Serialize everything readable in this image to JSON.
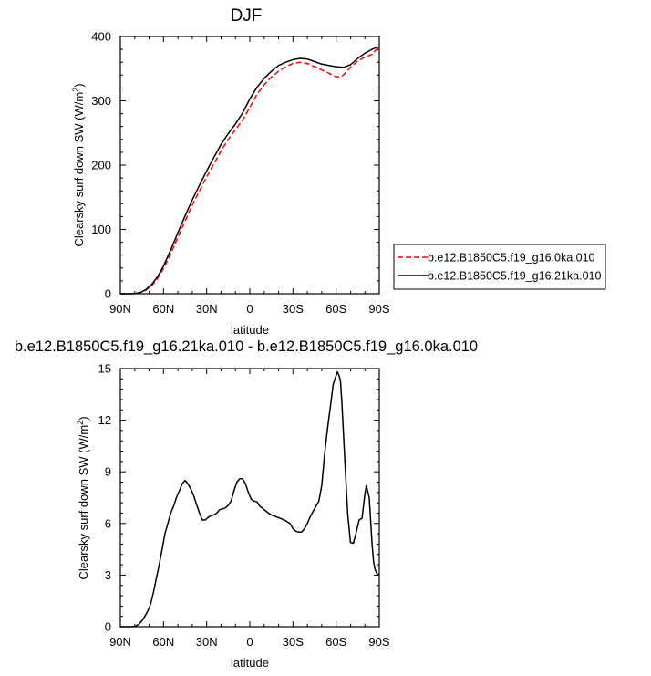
{
  "chart_data": [
    {
      "type": "line",
      "title": "DJF",
      "xlabel": "latitude",
      "ylabel": "Clearsky surf down SW (W/m",
      "ylabel_sup": "2",
      "ylabel_close": ")",
      "x_ticks": [
        "90N",
        "60N",
        "30N",
        "0",
        "30S",
        "60S",
        "90S"
      ],
      "x_tick_values": [
        90,
        60,
        30,
        0,
        -30,
        -60,
        -90
      ],
      "y_ticks": [
        "0",
        "100",
        "200",
        "300",
        "400"
      ],
      "y_tick_values": [
        0,
        100,
        200,
        300,
        400
      ],
      "xlim": [
        90,
        -90
      ],
      "ylim": [
        0,
        400
      ],
      "legend_position": "right",
      "series": [
        {
          "name": "b.e12.B1850C5.f19_g16.0ka.010",
          "color": "#ff0000",
          "dash": "dashed",
          "x": [
            90,
            84,
            80,
            76,
            72,
            68,
            64,
            60,
            55,
            50,
            45,
            40,
            35,
            30,
            25,
            20,
            15,
            10,
            5,
            0,
            -5,
            -10,
            -15,
            -20,
            -25,
            -30,
            -35,
            -40,
            -45,
            -50,
            -55,
            -58,
            -61,
            -64,
            -67,
            -70,
            -75,
            -80,
            -85,
            -88,
            -90
          ],
          "y": [
            0,
            0,
            0.3,
            2,
            6,
            13,
            24,
            39,
            62,
            88,
            113,
            138,
            160,
            182,
            202,
            222,
            240,
            255,
            270,
            290,
            310,
            325,
            337,
            346,
            353,
            358,
            360,
            358,
            353,
            348,
            343,
            339,
            337,
            338,
            345,
            352,
            362,
            368,
            372,
            380,
            383
          ]
        },
        {
          "name": "b.e12.B1850C5.f19_g16.21ka.010",
          "color": "#000000",
          "dash": "solid",
          "x": [
            90,
            84,
            80,
            76,
            72,
            68,
            64,
            60,
            55,
            50,
            45,
            40,
            35,
            30,
            25,
            20,
            15,
            10,
            5,
            0,
            -5,
            -10,
            -15,
            -20,
            -25,
            -30,
            -35,
            -40,
            -45,
            -50,
            -55,
            -60,
            -65,
            -70,
            -75,
            -80,
            -85,
            -88,
            -90
          ],
          "y": [
            0,
            0,
            0.3,
            2,
            7,
            15,
            27,
            43,
            68,
            95,
            121,
            146,
            169,
            191,
            212,
            232,
            249,
            264,
            281,
            303,
            321,
            335,
            346,
            355,
            360,
            364,
            366,
            365,
            361,
            357,
            355,
            353,
            352,
            356,
            366,
            374,
            380,
            383,
            384
          ]
        }
      ]
    },
    {
      "type": "line",
      "title": "b.e12.B1850C5.f19_g16.21ka.010 - b.e12.B1850C5.f19_g16.0ka.010",
      "xlabel": "latitude",
      "ylabel": "Clearsky surf down SW (W/m",
      "ylabel_sup": "2",
      "ylabel_close": ")",
      "x_ticks": [
        "90N",
        "60N",
        "30N",
        "0",
        "30S",
        "60S",
        "90S"
      ],
      "x_tick_values": [
        90,
        60,
        30,
        0,
        -30,
        -60,
        -90
      ],
      "y_ticks": [
        "0",
        "3",
        "6",
        "9",
        "12",
        "15"
      ],
      "y_tick_values": [
        0,
        3,
        6,
        9,
        12,
        15
      ],
      "xlim": [
        90,
        -90
      ],
      "ylim": [
        0,
        15
      ],
      "series": [
        {
          "color": "#000000",
          "x": [
            90,
            84,
            80,
            77,
            75,
            73,
            71,
            69,
            67,
            65,
            63,
            61,
            59,
            57,
            55,
            53,
            51,
            49,
            47,
            45,
            43,
            41,
            39,
            37,
            35,
            33,
            31,
            29,
            27,
            25,
            23,
            21,
            19,
            17,
            15,
            13,
            11,
            9,
            7,
            5,
            3,
            1,
            -1,
            -3,
            -5,
            -7,
            -10,
            -13,
            -15,
            -18,
            -21,
            -24,
            -26,
            -28,
            -30,
            -32,
            -34,
            -36,
            -38,
            -40,
            -42,
            -44,
            -46,
            -48,
            -50,
            -52,
            -54,
            -56,
            -58,
            -60,
            -61,
            -62,
            -63,
            -64,
            -66,
            -68,
            -70,
            -72,
            -74,
            -76,
            -78,
            -80,
            -81,
            -83,
            -85,
            -86,
            -87,
            -88,
            -89,
            -90
          ],
          "y": [
            0,
            0,
            0.01,
            0.15,
            0.35,
            0.6,
            0.9,
            1.3,
            2.0,
            2.8,
            3.6,
            4.5,
            5.4,
            6.0,
            6.6,
            7.0,
            7.5,
            7.9,
            8.3,
            8.5,
            8.3,
            8.0,
            7.6,
            7.1,
            6.6,
            6.2,
            6.2,
            6.35,
            6.45,
            6.5,
            6.6,
            6.8,
            6.85,
            6.9,
            7.05,
            7.3,
            7.9,
            8.4,
            8.6,
            8.6,
            8.3,
            7.8,
            7.4,
            7.3,
            7.25,
            7.0,
            6.8,
            6.6,
            6.5,
            6.4,
            6.3,
            6.2,
            6.1,
            6.0,
            5.7,
            5.55,
            5.5,
            5.5,
            5.7,
            6.0,
            6.4,
            6.7,
            7.0,
            7.3,
            8.2,
            10.0,
            11.5,
            12.8,
            14.1,
            14.6,
            14.8,
            14.6,
            14.3,
            13.0,
            9.8,
            6.6,
            4.9,
            4.85,
            5.5,
            6.2,
            6.3,
            7.7,
            8.2,
            7.5,
            4.8,
            3.8,
            3.35,
            3.15,
            3.05,
            3.0
          ]
        }
      ]
    }
  ]
}
